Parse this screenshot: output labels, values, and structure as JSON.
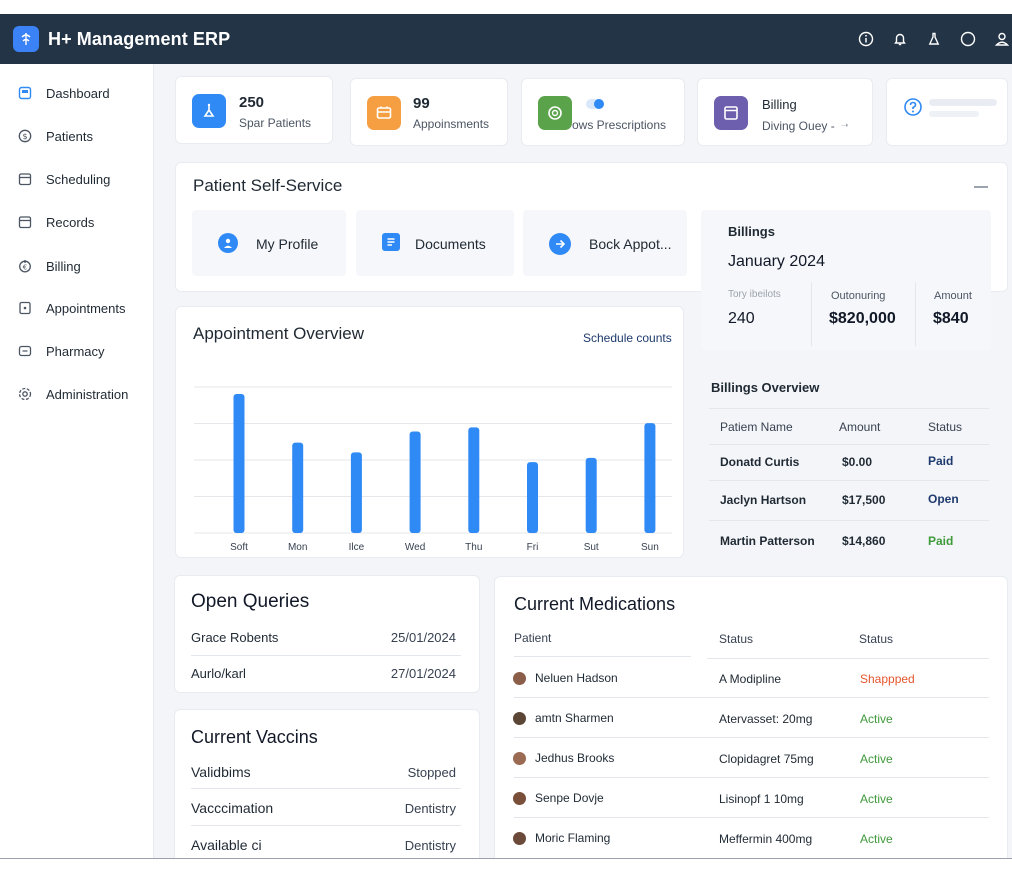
{
  "app": {
    "title": "H+ Management ERP"
  },
  "topbar_icons": [
    "info-icon",
    "bell-icon",
    "flask-icon",
    "circle-icon",
    "user-icon"
  ],
  "sidebar": {
    "items": [
      {
        "label": "Dashboard",
        "icon": "dashboard-icon"
      },
      {
        "label": "Patients",
        "icon": "patients-icon"
      },
      {
        "label": "Scheduling",
        "icon": "calendar-icon"
      },
      {
        "label": "Records",
        "icon": "records-icon"
      },
      {
        "label": "Billing",
        "icon": "billing-icon"
      },
      {
        "label": "Appointments",
        "icon": "appointments-icon"
      },
      {
        "label": "Pharmacy",
        "icon": "pharmacy-icon"
      },
      {
        "label": "Administration",
        "icon": "admin-icon"
      }
    ]
  },
  "stats": [
    {
      "value": "250",
      "label": "Spar Patients",
      "color": "#2f8af5"
    },
    {
      "value": "99",
      "label": "Appoinsments",
      "color": "#f59e42"
    },
    {
      "value": "",
      "label": "ows Prescriptions",
      "color": "#5aa34a"
    },
    {
      "value": "Billing",
      "label": "Diving Ouey -",
      "color": "#6d5fae"
    },
    {
      "value": "",
      "label": "",
      "color": "#2f8af5"
    }
  ],
  "self_service": {
    "title": "Patient Self-Service",
    "tiles": [
      {
        "label": "My Profile",
        "icon": "profile-icon"
      },
      {
        "label": "Documents",
        "icon": "documents-icon"
      },
      {
        "label": "Bock Appot...",
        "icon": "arrow-right-icon"
      }
    ]
  },
  "billings": {
    "title": "Billings",
    "period": "January 2024",
    "metrics": [
      {
        "label": "Tory ibeilots",
        "value": "240"
      },
      {
        "label": "Outonuring",
        "value": "$820,000"
      },
      {
        "label": "Amount",
        "value": "$840"
      }
    ]
  },
  "appointment_overview": {
    "title": "Appointment Overview",
    "link": "Schedule counts"
  },
  "chart_data": {
    "type": "bar",
    "categories": [
      "Soft",
      "Mon",
      "Ilce",
      "Wed",
      "Thu",
      "Fri",
      "Sut",
      "Sun"
    ],
    "values": [
      100,
      65,
      58,
      73,
      76,
      51,
      54,
      79
    ],
    "ylim": [
      0,
      105
    ],
    "grid": true,
    "color": "#2f8af5"
  },
  "billings_overview": {
    "title": "Billings Overview",
    "columns": [
      "Patiem Name",
      "Amount",
      "Status"
    ],
    "rows": [
      {
        "name": "Donatd Curtis",
        "amount": "$0.00",
        "status": "Paid",
        "status_color": "#1e3a6e"
      },
      {
        "name": "Jaclyn Hartson",
        "amount": "$17,500",
        "status": "Open",
        "status_color": "#1e3a6e"
      },
      {
        "name": "Martin Patterson",
        "amount": "$14,860",
        "status": "Paid",
        "status_color": "#3f9a3a"
      }
    ]
  },
  "open_queries": {
    "title": "Open Queries",
    "rows": [
      {
        "name": "Grace Robents",
        "date": "25/01/2024"
      },
      {
        "name": "Aurlo/karl",
        "date": "27/01/2024"
      }
    ]
  },
  "current_vaccins": {
    "title": "Current Vaccins",
    "rows": [
      {
        "name": "Validbims",
        "value": "Stopped"
      },
      {
        "name": "Vacccimation",
        "value": "Dentistry"
      },
      {
        "name": "Available ci",
        "value": "Dentistry"
      }
    ]
  },
  "current_medications": {
    "title": "Current Medications",
    "columns": [
      "Patient",
      "Status",
      "Status"
    ],
    "rows": [
      {
        "patient": "Neluen Hadson",
        "medication": "A Modipline",
        "status": "Shappped",
        "status_color": "#e4572e"
      },
      {
        "patient": "amtn Sharmen",
        "medication": "Atervasset: 20mg",
        "status": "Active",
        "status_color": "#3f9a3a"
      },
      {
        "patient": "Jedhus Brooks",
        "medication": "Clopidagret 75mg",
        "status": "Active",
        "status_color": "#3f9a3a"
      },
      {
        "patient": "Senpe Dovje",
        "medication": "Lisinopf 1 10mg",
        "status": "Active",
        "status_color": "#3f9a3a"
      },
      {
        "patient": "Moric Flaming",
        "medication": "Meffermin 400mg",
        "status": "Active",
        "status_color": "#3f9a3a"
      }
    ]
  }
}
